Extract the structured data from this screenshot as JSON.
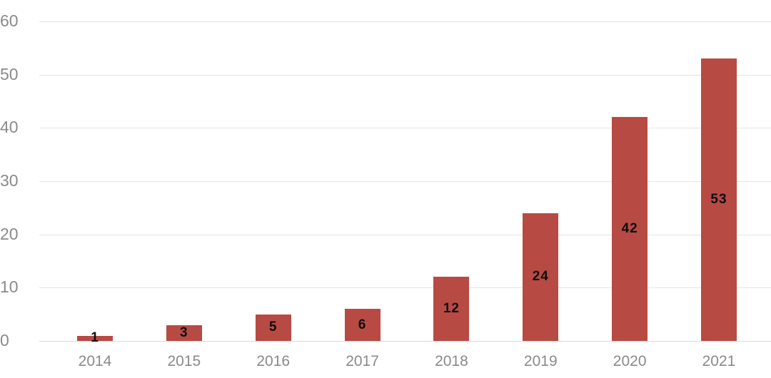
{
  "chart_data": {
    "type": "bar",
    "title": "",
    "xlabel": "",
    "ylabel": "",
    "categories": [
      "2014",
      "2015",
      "2016",
      "2017",
      "2018",
      "2019",
      "2020",
      "2021"
    ],
    "values": [
      1,
      3,
      5,
      6,
      12,
      24,
      42,
      53
    ],
    "data_labels": [
      "1",
      "3",
      "5",
      "6",
      "12",
      "24",
      "42",
      "53"
    ],
    "ylim": [
      0,
      60
    ],
    "yticks": [
      0,
      10,
      20,
      30,
      40,
      50,
      60
    ],
    "grid": true,
    "legend": false,
    "colors": {
      "bar": "#b84a44",
      "data_label": "#0d0d0d",
      "axis_text": "#8a8a8a",
      "gridline": "#e4e4e4",
      "baseline": "#d9d9d9"
    }
  }
}
